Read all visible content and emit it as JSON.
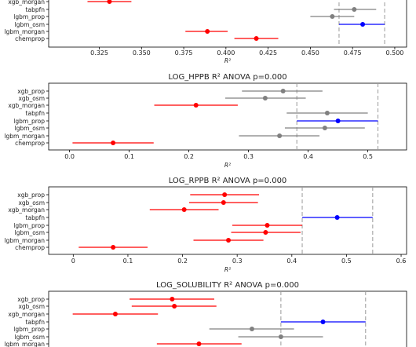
{
  "chart_data": [
    {
      "type": "scatter",
      "title": "",
      "xlabel": "R²",
      "xlim": [
        0.295,
        0.507
      ],
      "xticks": [
        0.325,
        0.35,
        0.375,
        0.4,
        0.425,
        0.45,
        0.475,
        0.5
      ],
      "xtick_labels": [
        "0.325",
        "0.350",
        "0.375",
        "0.400",
        "0.425",
        "0.450",
        "0.475",
        "0.500"
      ],
      "vlines": [
        0.467,
        0.494
      ],
      "categories": [
        "xgb_morgan",
        "tabpfn",
        "lgbm_prop",
        "lgbm_osm",
        "lgbm_morgan",
        "chemprop"
      ],
      "points": [
        {
          "mean": 0.331,
          "lo": 0.318,
          "hi": 0.344,
          "color": "#ff0000"
        },
        {
          "mean": 0.476,
          "lo": 0.464,
          "hi": 0.489,
          "color": "#808080"
        },
        {
          "mean": 0.463,
          "lo": 0.45,
          "hi": 0.476,
          "color": "#808080"
        },
        {
          "mean": 0.481,
          "lo": 0.467,
          "hi": 0.494,
          "color": "#0000ff"
        },
        {
          "mean": 0.389,
          "lo": 0.376,
          "hi": 0.401,
          "color": "#ff0000"
        },
        {
          "mean": 0.418,
          "lo": 0.405,
          "hi": 0.431,
          "color": "#ff0000"
        }
      ]
    },
    {
      "type": "scatter",
      "title": "LOG_HPPB R² ANOVA p=0.000",
      "xlabel": "R²",
      "xlim": [
        -0.035,
        0.565
      ],
      "xticks": [
        0.0,
        0.1,
        0.2,
        0.3,
        0.4,
        0.5
      ],
      "xtick_labels": [
        "0.0",
        "0.1",
        "0.2",
        "0.3",
        "0.4",
        "0.5"
      ],
      "vlines": [
        0.381,
        0.517
      ],
      "categories": [
        "xgb_prop",
        "xgb_osm",
        "xgb_morgan",
        "tabpfn",
        "lgbm_prop",
        "lgbm_osm",
        "lgbm_morgan",
        "chemprop"
      ],
      "points": [
        {
          "mean": 0.358,
          "lo": 0.289,
          "hi": 0.424,
          "color": "#808080"
        },
        {
          "mean": 0.328,
          "lo": 0.261,
          "hi": 0.396,
          "color": "#808080"
        },
        {
          "mean": 0.212,
          "lo": 0.142,
          "hi": 0.282,
          "color": "#ff0000"
        },
        {
          "mean": 0.432,
          "lo": 0.364,
          "hi": 0.5,
          "color": "#808080"
        },
        {
          "mean": 0.45,
          "lo": 0.381,
          "hi": 0.517,
          "color": "#0000ff"
        },
        {
          "mean": 0.428,
          "lo": 0.361,
          "hi": 0.495,
          "color": "#808080"
        },
        {
          "mean": 0.352,
          "lo": 0.284,
          "hi": 0.419,
          "color": "#808080"
        },
        {
          "mean": 0.073,
          "lo": 0.005,
          "hi": 0.141,
          "color": "#ff0000"
        }
      ]
    },
    {
      "type": "scatter",
      "title": "LOG_RPPB R² ANOVA p=0.000",
      "xlabel": "R²",
      "xlim": [
        -0.045,
        0.61
      ],
      "xticks": [
        0.0,
        0.1,
        0.2,
        0.3,
        0.4,
        0.5,
        0.6
      ],
      "xtick_labels": [
        "0",
        "0.1",
        "0.2",
        "0.3",
        "0.4",
        "0.5",
        "0.6"
      ],
      "vlines": [
        0.419,
        0.548
      ],
      "categories": [
        "xgb_prop",
        "xgb_osm",
        "xgb_morgan",
        "tabpfn",
        "lgbm_prop",
        "lgbm_osm",
        "lgbm_morgan",
        "chemprop"
      ],
      "points": [
        {
          "mean": 0.277,
          "lo": 0.214,
          "hi": 0.34,
          "color": "#ff0000"
        },
        {
          "mean": 0.275,
          "lo": 0.212,
          "hi": 0.338,
          "color": "#ff0000"
        },
        {
          "mean": 0.203,
          "lo": 0.14,
          "hi": 0.266,
          "color": "#ff0000"
        },
        {
          "mean": 0.483,
          "lo": 0.419,
          "hi": 0.548,
          "color": "#0000ff"
        },
        {
          "mean": 0.355,
          "lo": 0.291,
          "hi": 0.419,
          "color": "#ff0000"
        },
        {
          "mean": 0.352,
          "lo": 0.289,
          "hi": 0.416,
          "color": "#ff0000"
        },
        {
          "mean": 0.284,
          "lo": 0.22,
          "hi": 0.348,
          "color": "#ff0000"
        },
        {
          "mean": 0.073,
          "lo": 0.01,
          "hi": 0.136,
          "color": "#ff0000"
        }
      ]
    },
    {
      "type": "scatter",
      "title": "LOG_SOLUBILITY R² ANOVA p=0.000",
      "xlabel": "",
      "xlim": [
        -0.045,
        0.61
      ],
      "xticks": [],
      "xtick_labels": [],
      "vlines": [
        0.38,
        0.535
      ],
      "categories": [
        "xgb_prop",
        "xgb_osm",
        "xgb_morgan",
        "tabpfn",
        "lgbm_prop",
        "lgbm_osm",
        "lgbm_morgan"
      ],
      "points": [
        {
          "mean": 0.181,
          "lo": 0.103,
          "hi": 0.258,
          "color": "#ff0000"
        },
        {
          "mean": 0.185,
          "lo": 0.107,
          "hi": 0.262,
          "color": "#ff0000"
        },
        {
          "mean": 0.077,
          "lo": -0.001,
          "hi": 0.155,
          "color": "#ff0000"
        },
        {
          "mean": 0.457,
          "lo": 0.38,
          "hi": 0.535,
          "color": "#0000ff"
        },
        {
          "mean": 0.327,
          "lo": 0.249,
          "hi": 0.404,
          "color": "#808080"
        },
        {
          "mean": 0.38,
          "lo": 0.302,
          "hi": 0.457,
          "color": "#808080"
        },
        {
          "mean": 0.23,
          "lo": 0.153,
          "hi": 0.308,
          "color": "#ff0000"
        }
      ]
    }
  ]
}
